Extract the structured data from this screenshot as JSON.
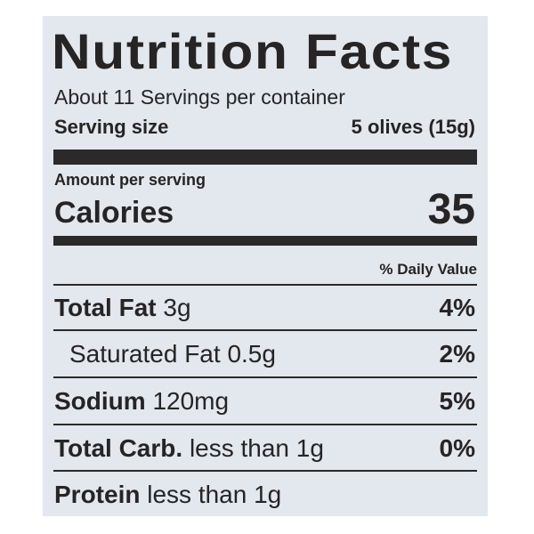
{
  "label": {
    "title": "Nutrition Facts",
    "servings": "About 11 Servings per container",
    "serving_size": {
      "label": "Serving size",
      "value": "5 olives (15g)"
    },
    "amount_per_serving": "Amount per serving",
    "calories": {
      "label": "Calories",
      "value": "35"
    },
    "daily_value_header": "% Daily Value",
    "rows": [
      {
        "name": "Total Fat",
        "amount": "3g",
        "daily_value": "4%"
      },
      {
        "name": "Saturated Fat",
        "amount": "0.5g",
        "daily_value": "2%"
      },
      {
        "name": "Sodium",
        "amount": "120mg",
        "daily_value": "5%"
      },
      {
        "name": "Total Carb.",
        "amount": "less than 1g",
        "daily_value": "0%"
      },
      {
        "name": "Protein",
        "amount": "less than 1g"
      }
    ]
  }
}
